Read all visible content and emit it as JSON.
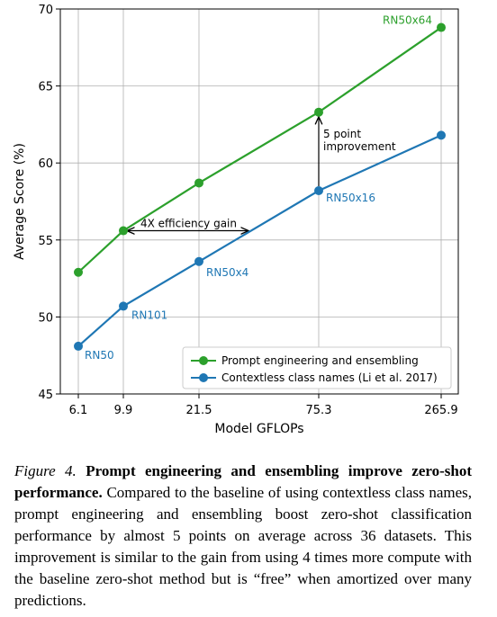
{
  "chart_data": {
    "type": "line",
    "x": [
      6.1,
      9.9,
      21.5,
      75.3,
      265.9
    ],
    "x_tick_labels": [
      "6.1",
      "9.9",
      "21.5",
      "75.3",
      "265.9"
    ],
    "xlabel": "Model GFLOPs",
    "ylabel": "Average Score (%)",
    "ylim": [
      45,
      70
    ],
    "y_ticks": [
      45,
      50,
      55,
      60,
      65,
      70
    ],
    "grid": true,
    "legend_position": "lower-right",
    "series": [
      {
        "name": "Prompt engineering and ensembling",
        "color": "#2ca02c",
        "values": [
          52.9,
          55.6,
          58.7,
          63.3,
          68.8
        ],
        "point_labels": [
          "",
          "",
          "",
          "",
          "RN50x64"
        ]
      },
      {
        "name": "Contextless class names (Li et al. 2017)",
        "color": "#1f77b4",
        "values": [
          48.1,
          50.7,
          53.6,
          58.2,
          61.8
        ],
        "point_labels": [
          "RN50",
          "RN101",
          "RN50x4",
          "RN50x16",
          ""
        ]
      }
    ],
    "annotations": [
      {
        "text": "4X efficiency gain",
        "type": "horizontal-arrow"
      },
      {
        "text_lines": [
          "5 point",
          "improvement"
        ],
        "type": "vertical-arrow"
      }
    ]
  },
  "caption": {
    "fig_num": "Figure 4.",
    "bold": "Prompt engineering and ensembling improve zero-shot performance.",
    "text": "Compared to the baseline of using contextless class names, prompt engineering and ensembling boost zero-shot classification performance by almost 5 points on average across 36 datasets. This improvement is similar to the gain from using 4 times more compute with the baseline zero-shot method but is “free” when amortized over many predictions."
  }
}
